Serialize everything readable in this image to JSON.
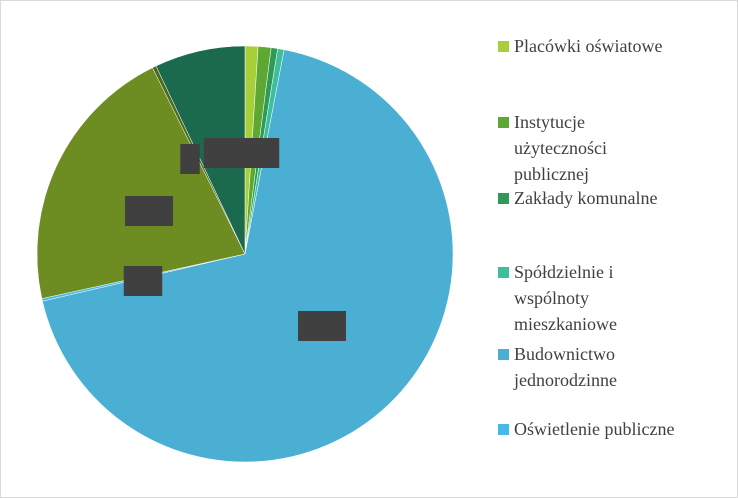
{
  "chart_data": {
    "type": "pie",
    "categories": [
      "Placówki oświatowe",
      "Instytucje użyteczności publicznej",
      "Zakłady komunalne",
      "Spółdzielnie i wspólnoty mieszkaniowe",
      "Budownictwo jednorodzinne",
      "Oświetlenie publiczne",
      null,
      null,
      null
    ],
    "values": [
      1,
      1,
      0.5,
      0.5,
      68,
      0.2,
      21,
      0.3,
      7
    ],
    "value_labels": [
      null,
      "1%",
      null,
      null,
      "68%",
      "0%",
      "21%",
      "0",
      "7%"
    ],
    "colors": [
      "#a8cf3a",
      "#5da833",
      "#2f9a55",
      "#3cbf9c",
      "#4aafd3",
      "#46b9e8",
      "#6d8c22",
      "#4d6a1b",
      "#1b6a4e"
    ],
    "legend": "right"
  }
}
